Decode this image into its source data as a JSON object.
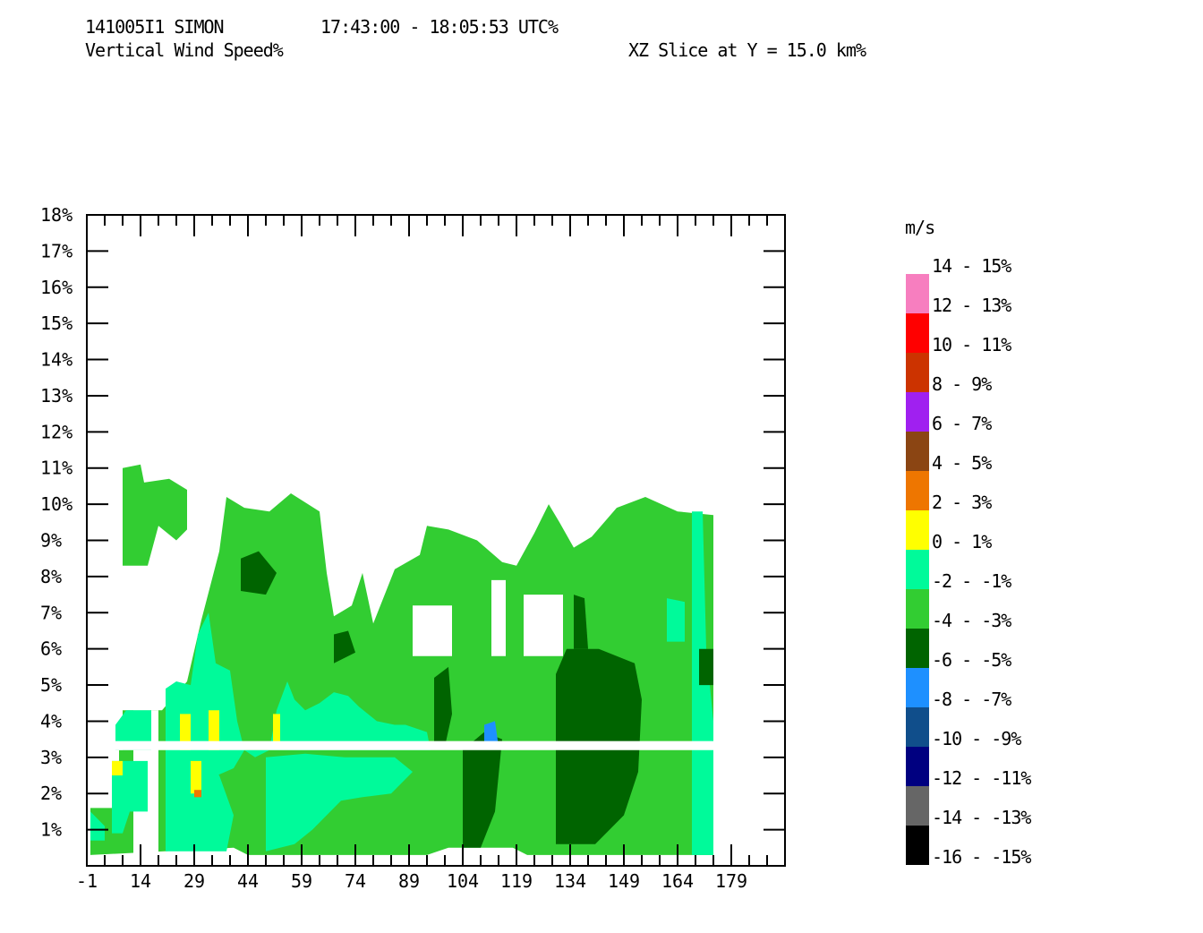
{
  "header": {
    "case_id": "141005I1 SIMON",
    "time_range": "17:43:00 - 18:05:53 UTC%",
    "field": "Vertical Wind Speed%",
    "slice": "XZ Slice at Y = 15.0 km%"
  },
  "chart_data": {
    "type": "heatmap",
    "title": "Vertical Wind Speed",
    "subtitle": "XZ Slice at Y = 15.0 km",
    "x_ticks": [
      "-1",
      "14",
      "29",
      "44",
      "59",
      "74",
      "89",
      "104",
      "119",
      "134",
      "149",
      "164",
      "179"
    ],
    "x_tick_values": [
      -1,
      14,
      29,
      44,
      59,
      74,
      89,
      104,
      119,
      134,
      149,
      164,
      179
    ],
    "xlim": [
      -1,
      194
    ],
    "y_ticks": [
      "1%",
      "2%",
      "3%",
      "4%",
      "5%",
      "6%",
      "7%",
      "8%",
      "9%",
      "10%",
      "11%",
      "12%",
      "13%",
      "14%",
      "15%",
      "16%",
      "17%",
      "18%"
    ],
    "y_tick_values": [
      1,
      2,
      3,
      4,
      5,
      6,
      7,
      8,
      9,
      10,
      11,
      12,
      13,
      14,
      15,
      16,
      17,
      18
    ],
    "ylim": [
      0,
      18
    ],
    "legend": {
      "unit": "m/s",
      "bins": [
        {
          "label": "14 - 15%",
          "color": "#f77ebf"
        },
        {
          "label": "12 - 13%",
          "color": "#ff0000"
        },
        {
          "label": "10 - 11%",
          "color": "#cc3300"
        },
        {
          "label": "8 - 9%",
          "color": "#a020f0"
        },
        {
          "label": "6 - 7%",
          "color": "#8b4513"
        },
        {
          "label": "4 - 5%",
          "color": "#ee7600"
        },
        {
          "label": "2 - 3%",
          "color": "#ffff00"
        },
        {
          "label": "0 - 1%",
          "color": "#00fa9a"
        },
        {
          "label": "-2 - -1%",
          "color": "#32cd32"
        },
        {
          "label": "-4 - -3%",
          "color": "#006400"
        },
        {
          "label": "-6 - -5%",
          "color": "#1e90ff"
        },
        {
          "label": "-8 - -7%",
          "color": "#104e8b"
        },
        {
          "label": "-10 - -9%",
          "color": "#000080"
        },
        {
          "label": "-12 - -11%",
          "color": "#666666"
        },
        {
          "label": "-14 - -13%",
          "color": "#000000"
        },
        {
          "label": "-16 - -15%",
          "color": ""
        }
      ]
    },
    "regions": [
      {
        "name": "yellow-main",
        "bin": "0 - 1",
        "polygon": [
          [
            0,
            0.3
          ],
          [
            0,
            1.6
          ],
          [
            8,
            1.6
          ],
          [
            8,
            3.2
          ],
          [
            9,
            3.2
          ],
          [
            9,
            4.3
          ],
          [
            20,
            4.3
          ],
          [
            27,
            5.1
          ],
          [
            31,
            6.8
          ],
          [
            36,
            8.7
          ],
          [
            38,
            10.2
          ],
          [
            43,
            9.9
          ],
          [
            50,
            9.8
          ],
          [
            56,
            10.3
          ],
          [
            64,
            9.8
          ],
          [
            66,
            8.1
          ],
          [
            68,
            6.9
          ],
          [
            73,
            7.2
          ],
          [
            76,
            8.1
          ],
          [
            79,
            6.7
          ],
          [
            85,
            8.2
          ],
          [
            92,
            8.6
          ],
          [
            94,
            9.4
          ],
          [
            100,
            9.3
          ],
          [
            108,
            9.0
          ],
          [
            115,
            8.4
          ],
          [
            119,
            8.3
          ],
          [
            124,
            9.2
          ],
          [
            128,
            10.0
          ],
          [
            131,
            9.5
          ],
          [
            135,
            8.8
          ],
          [
            140,
            9.1
          ],
          [
            147,
            9.9
          ],
          [
            155,
            10.2
          ],
          [
            164,
            9.8
          ],
          [
            174,
            9.7
          ],
          [
            174,
            0.3
          ],
          [
            122,
            0.3
          ],
          [
            118,
            0.5
          ],
          [
            100,
            0.5
          ],
          [
            94,
            0.3
          ],
          [
            44,
            0.3
          ],
          [
            40,
            0.5
          ]
        ]
      },
      {
        "name": "yellow-tower",
        "bin": "0 - 1",
        "polygon": [
          [
            9,
            8.3
          ],
          [
            9,
            11.0
          ],
          [
            14,
            11.1
          ],
          [
            15,
            10.6
          ],
          [
            22,
            10.7
          ],
          [
            27,
            10.4
          ],
          [
            27,
            9.3
          ],
          [
            24,
            9.0
          ],
          [
            19,
            9.4
          ],
          [
            16,
            8.3
          ]
        ]
      },
      {
        "name": "gap-left",
        "bin": "none",
        "polygon": [
          [
            12,
            0.3
          ],
          [
            12,
            4.3
          ],
          [
            19,
            4.3
          ],
          [
            19,
            0.3
          ]
        ]
      },
      {
        "name": "gap-mid",
        "bin": "none",
        "polygon": [
          [
            90,
            5.8
          ],
          [
            90,
            7.2
          ],
          [
            101,
            7.2
          ],
          [
            101,
            5.8
          ]
        ]
      },
      {
        "name": "gap-right",
        "bin": "none",
        "polygon": [
          [
            112,
            5.8
          ],
          [
            112,
            7.9
          ],
          [
            116,
            7.9
          ],
          [
            116,
            5.8
          ],
          [
            132,
            5.8
          ],
          [
            132,
            7.5
          ],
          [
            121,
            7.5
          ],
          [
            121,
            5.8
          ]
        ]
      },
      {
        "name": "orange-left-low",
        "bin": "2 - 3",
        "polygon": [
          [
            6,
            0.9
          ],
          [
            6,
            2.9
          ],
          [
            16,
            2.9
          ],
          [
            16,
            1.5
          ],
          [
            11,
            1.5
          ],
          [
            9,
            0.9
          ]
        ]
      },
      {
        "name": "orange-left-mid",
        "bin": "2 - 3",
        "polygon": [
          [
            7,
            3.2
          ],
          [
            7,
            3.9
          ],
          [
            10,
            4.3
          ],
          [
            17,
            4.3
          ],
          [
            17,
            3.2
          ]
        ]
      },
      {
        "name": "orange-left-edge",
        "bin": "2 - 3",
        "polygon": [
          [
            0,
            0.7
          ],
          [
            0,
            1.5
          ],
          [
            4,
            1.1
          ],
          [
            4,
            0.7
          ]
        ]
      },
      {
        "name": "orange-core",
        "bin": "2 - 3",
        "polygon": [
          [
            21,
            2.0
          ],
          [
            21,
            4.9
          ],
          [
            24,
            5.1
          ],
          [
            28,
            5.0
          ],
          [
            30,
            6.4
          ],
          [
            33,
            7.0
          ],
          [
            35,
            5.6
          ],
          [
            39,
            5.4
          ],
          [
            41,
            4.0
          ],
          [
            43,
            3.2
          ],
          [
            46,
            3.0
          ],
          [
            50,
            3.2
          ],
          [
            52,
            4.3
          ],
          [
            55,
            5.1
          ],
          [
            57,
            4.6
          ],
          [
            60,
            4.3
          ],
          [
            64,
            4.5
          ],
          [
            68,
            4.8
          ],
          [
            72,
            4.7
          ],
          [
            75,
            4.4
          ],
          [
            80,
            4.0
          ],
          [
            85,
            3.9
          ],
          [
            88,
            3.9
          ],
          [
            94,
            3.7
          ],
          [
            95,
            3.2
          ],
          [
            43,
            3.2
          ],
          [
            40,
            2.7
          ],
          [
            33,
            2.4
          ],
          [
            26,
            2.0
          ]
        ]
      },
      {
        "name": "orange-lower",
        "bin": "2 - 3",
        "polygon": [
          [
            21,
            0.4
          ],
          [
            21,
            2.8
          ],
          [
            28,
            3.2
          ],
          [
            33,
            2.8
          ],
          [
            36,
            2.5
          ],
          [
            40,
            1.4
          ],
          [
            38,
            0.4
          ]
        ]
      },
      {
        "name": "orange-lower2",
        "bin": "2 - 3",
        "polygon": [
          [
            49,
            0.4
          ],
          [
            49,
            3.0
          ],
          [
            60,
            3.1
          ],
          [
            71,
            3.0
          ],
          [
            85,
            3.0
          ],
          [
            90,
            2.6
          ],
          [
            84,
            2.0
          ],
          [
            76,
            1.9
          ],
          [
            70,
            1.8
          ],
          [
            62,
            1.0
          ],
          [
            57,
            0.6
          ]
        ]
      },
      {
        "name": "orange-right",
        "bin": "2 - 3",
        "polygon": [
          [
            168,
            0.3
          ],
          [
            168,
            9.8
          ],
          [
            171,
            9.8
          ],
          [
            172,
            6.0
          ],
          [
            174,
            4.0
          ],
          [
            174,
            0.3
          ]
        ]
      },
      {
        "name": "orange-right2",
        "bin": "2 - 3",
        "polygon": [
          [
            161,
            6.2
          ],
          [
            161,
            7.4
          ],
          [
            166,
            7.3
          ],
          [
            166,
            6.2
          ]
        ]
      },
      {
        "name": "green-left-tower",
        "bin": "-2 - -1",
        "polygon": [
          [
            42,
            7.6
          ],
          [
            42,
            8.5
          ],
          [
            47,
            8.7
          ],
          [
            52,
            8.1
          ],
          [
            49,
            7.5
          ]
        ]
      },
      {
        "name": "green-mid",
        "bin": "-2 - -1",
        "polygon": [
          [
            130,
            0.6
          ],
          [
            130,
            5.3
          ],
          [
            133,
            6.0
          ],
          [
            142,
            6.0
          ],
          [
            152,
            5.6
          ],
          [
            154,
            4.6
          ],
          [
            153,
            2.6
          ],
          [
            149,
            1.4
          ],
          [
            141,
            0.6
          ]
        ]
      },
      {
        "name": "green-mid2",
        "bin": "-2 - -1",
        "polygon": [
          [
            104,
            0.5
          ],
          [
            104,
            3.2
          ],
          [
            110,
            3.7
          ],
          [
            115,
            3.5
          ],
          [
            113,
            1.5
          ],
          [
            109,
            0.5
          ]
        ]
      },
      {
        "name": "green-mid3",
        "bin": "-2 - -1",
        "polygon": [
          [
            96,
            3.3
          ],
          [
            96,
            5.2
          ],
          [
            100,
            5.5
          ],
          [
            101,
            4.2
          ],
          [
            99,
            3.3
          ]
        ]
      },
      {
        "name": "green-upper",
        "bin": "-2 - -1",
        "polygon": [
          [
            135,
            6.0
          ],
          [
            135,
            7.5
          ],
          [
            138,
            7.4
          ],
          [
            139,
            6.0
          ]
        ]
      },
      {
        "name": "green-small",
        "bin": "-2 - -1",
        "polygon": [
          [
            68,
            5.6
          ],
          [
            68,
            6.4
          ],
          [
            72,
            6.5
          ],
          [
            74,
            5.9
          ]
        ]
      },
      {
        "name": "green-edge",
        "bin": "-2 - -1",
        "polygon": [
          [
            170,
            5.0
          ],
          [
            170,
            6.0
          ],
          [
            174,
            6.0
          ],
          [
            174,
            5.0
          ]
        ]
      },
      {
        "name": "green-dark-spot",
        "bin": "-4 - -3",
        "polygon": [
          [
            110,
            3.3
          ],
          [
            110,
            3.9
          ],
          [
            113,
            4.0
          ],
          [
            114,
            3.3
          ]
        ]
      },
      {
        "name": "brown-spot-1",
        "bin": "4 - 5",
        "polygon": [
          [
            25,
            3.2
          ],
          [
            25,
            4.2
          ],
          [
            28,
            4.2
          ],
          [
            28,
            3.2
          ]
        ]
      },
      {
        "name": "brown-spot-2",
        "bin": "4 - 5",
        "polygon": [
          [
            33,
            3.2
          ],
          [
            33,
            4.3
          ],
          [
            36,
            4.3
          ],
          [
            36,
            3.2
          ]
        ]
      },
      {
        "name": "brown-spot-3",
        "bin": "4 - 5",
        "polygon": [
          [
            51,
            3.3
          ],
          [
            51,
            4.2
          ],
          [
            53,
            4.2
          ],
          [
            53,
            3.3
          ]
        ]
      },
      {
        "name": "brown-spot-4",
        "bin": "4 - 5",
        "polygon": [
          [
            6,
            2.5
          ],
          [
            6,
            2.9
          ],
          [
            9,
            2.9
          ],
          [
            9,
            2.5
          ]
        ]
      },
      {
        "name": "brown-spot-5",
        "bin": "4 - 5",
        "polygon": [
          [
            28,
            2.0
          ],
          [
            28,
            2.9
          ],
          [
            31,
            2.9
          ],
          [
            31,
            2.0
          ]
        ]
      },
      {
        "name": "purple-spot",
        "bin": "6 - 7",
        "polygon": [
          [
            29,
            1.9
          ],
          [
            29,
            2.1
          ],
          [
            31,
            2.1
          ],
          [
            31,
            1.9
          ]
        ]
      }
    ],
    "blank_row_y": [
      3.2,
      3.45
    ]
  }
}
